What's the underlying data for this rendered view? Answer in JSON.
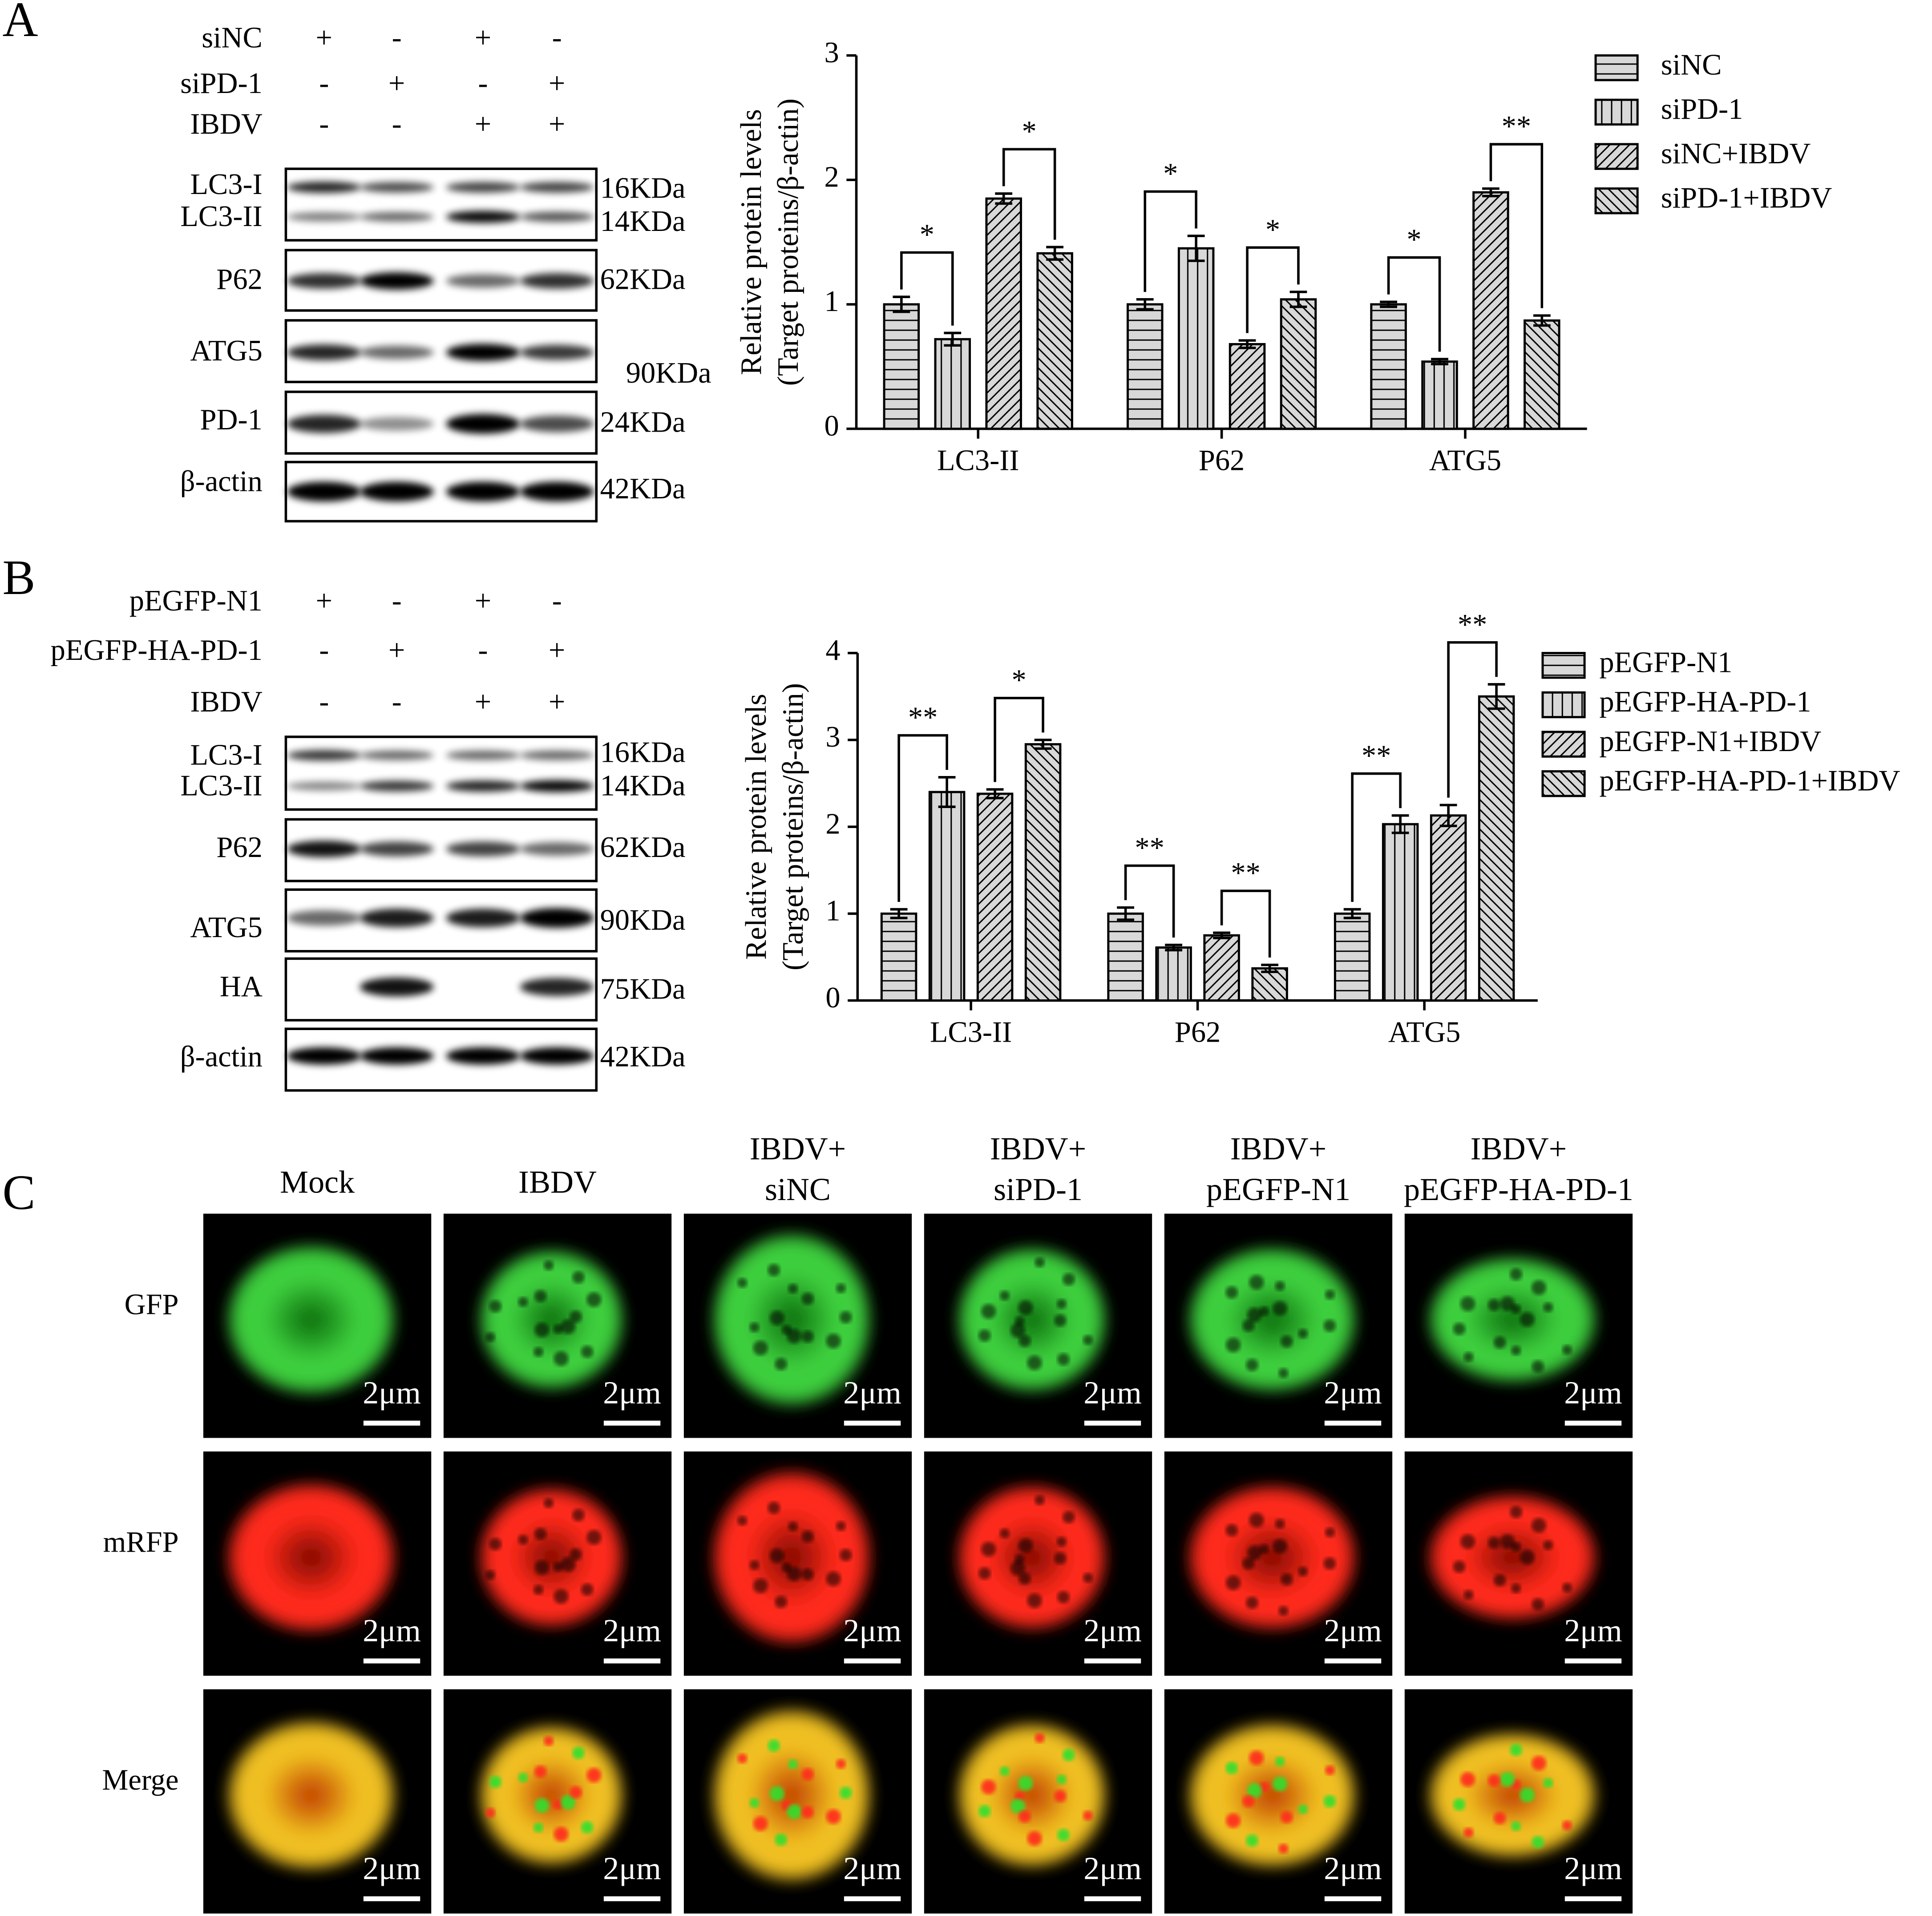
{
  "panel_a": {
    "label": "A",
    "treatments": [
      {
        "name": "siNC",
        "signs": [
          "+",
          "-",
          "+",
          "-"
        ]
      },
      {
        "name": "siPD-1",
        "signs": [
          "-",
          "+",
          "-",
          "+"
        ]
      },
      {
        "name": "IBDV",
        "signs": [
          "-",
          "-",
          "+",
          "+"
        ]
      }
    ],
    "blots": [
      {
        "labels": [
          "LC3-I",
          "LC3-II"
        ],
        "sizes": [
          "16KDa",
          "14KDa"
        ]
      },
      {
        "labels": [
          "P62"
        ],
        "sizes": [
          "62KDa"
        ]
      },
      {
        "labels": [
          "ATG5"
        ],
        "sizes": [
          "90KDa"
        ]
      },
      {
        "labels": [
          "PD-1"
        ],
        "sizes": [
          "24KDa"
        ]
      },
      {
        "labels": [
          "β-actin"
        ],
        "sizes": [
          "42KDa"
        ]
      }
    ]
  },
  "panel_b": {
    "label": "B",
    "treatments": [
      {
        "name": "pEGFP-N1",
        "signs": [
          "+",
          "-",
          "+",
          "-"
        ]
      },
      {
        "name": "pEGFP-HA-PD-1",
        "signs": [
          "-",
          "+",
          "-",
          "+"
        ]
      },
      {
        "name": "IBDV",
        "signs": [
          "-",
          "-",
          "+",
          "+"
        ]
      }
    ],
    "blots": [
      {
        "labels": [
          "LC3-I",
          "LC3-II"
        ],
        "sizes": [
          "16KDa",
          "14KDa"
        ]
      },
      {
        "labels": [
          "P62"
        ],
        "sizes": [
          "62KDa"
        ]
      },
      {
        "labels": [
          "ATG5"
        ],
        "sizes": [
          "90KDa"
        ]
      },
      {
        "labels": [
          "HA"
        ],
        "sizes": [
          "75KDa"
        ]
      },
      {
        "labels": [
          "β-actin"
        ],
        "sizes": [
          "42KDa"
        ]
      }
    ]
  },
  "chart_data": [
    {
      "type": "bar",
      "ylabel": [
        "Relative protein levels",
        "(Target proteins/β-actin)"
      ],
      "categories": [
        "LC3-II",
        "P62",
        "ATG5"
      ],
      "ylim": [
        0,
        3
      ],
      "yticks": [
        0,
        1,
        2,
        3
      ],
      "grid": false,
      "legend": "right",
      "series": [
        {
          "name": "siNC",
          "color": "#d8d8d8",
          "pattern": "horizontal",
          "values": [
            1.0,
            1.0,
            1.0
          ],
          "errors": [
            0.06,
            0.04,
            0.02
          ]
        },
        {
          "name": "siPD-1",
          "color": "#d8d8d8",
          "pattern": "vertical",
          "values": [
            0.72,
            1.45,
            0.54
          ],
          "errors": [
            0.05,
            0.1,
            0.02
          ]
        },
        {
          "name": "siNC+IBDV",
          "color": "#d8d8d8",
          "pattern": "diagonal",
          "values": [
            1.85,
            0.68,
            1.9
          ],
          "errors": [
            0.04,
            0.03,
            0.03
          ]
        },
        {
          "name": "siPD-1+IBDV",
          "color": "#d8d8d8",
          "pattern": "backdiagonal",
          "values": [
            1.41,
            1.04,
            0.87
          ],
          "errors": [
            0.05,
            0.06,
            0.04
          ]
        }
      ],
      "annotations": [
        {
          "category": 0,
          "series": [
            0,
            1
          ],
          "text": "*"
        },
        {
          "category": 0,
          "series": [
            2,
            3
          ],
          "text": "*"
        },
        {
          "category": 1,
          "series": [
            0,
            1
          ],
          "text": "*"
        },
        {
          "category": 1,
          "series": [
            2,
            3
          ],
          "text": "*"
        },
        {
          "category": 2,
          "series": [
            0,
            1
          ],
          "text": "*"
        },
        {
          "category": 2,
          "series": [
            2,
            3
          ],
          "text": "**"
        }
      ]
    },
    {
      "type": "bar",
      "ylabel": [
        "Relative protein levels",
        "(Target proteins/β-actin)"
      ],
      "categories": [
        "LC3-II",
        "P62",
        "ATG5"
      ],
      "ylim": [
        0,
        4
      ],
      "yticks": [
        0,
        1,
        2,
        3,
        4
      ],
      "grid": false,
      "legend": "right",
      "series": [
        {
          "name": "pEGFP-N1",
          "color": "#d8d8d8",
          "pattern": "horizontal",
          "values": [
            1.0,
            1.0,
            1.0
          ],
          "errors": [
            0.05,
            0.07,
            0.05
          ]
        },
        {
          "name": "pEGFP-HA-PD-1",
          "color": "#d8d8d8",
          "pattern": "vertical",
          "values": [
            2.4,
            0.61,
            2.03
          ],
          "errors": [
            0.17,
            0.03,
            0.1
          ]
        },
        {
          "name": "pEGFP-N1+IBDV",
          "color": "#d8d8d8",
          "pattern": "diagonal",
          "values": [
            2.38,
            0.75,
            2.13
          ],
          "errors": [
            0.05,
            0.03,
            0.12
          ]
        },
        {
          "name": "pEGFP-HA-PD-1+IBDV",
          "color": "#d8d8d8",
          "pattern": "backdiagonal",
          "values": [
            2.95,
            0.37,
            3.5
          ],
          "errors": [
            0.05,
            0.04,
            0.14
          ]
        }
      ],
      "annotations": [
        {
          "category": 0,
          "series": [
            0,
            1
          ],
          "text": "**"
        },
        {
          "category": 0,
          "series": [
            2,
            3
          ],
          "text": "*"
        },
        {
          "category": 1,
          "series": [
            0,
            1
          ],
          "text": "**"
        },
        {
          "category": 1,
          "series": [
            2,
            3
          ],
          "text": "**"
        },
        {
          "category": 2,
          "series": [
            0,
            1
          ],
          "text": "**"
        },
        {
          "category": 2,
          "series": [
            2,
            3
          ],
          "text": "**"
        }
      ]
    }
  ],
  "panel_c": {
    "label": "C",
    "columns": [
      [
        "Mock"
      ],
      [
        "IBDV"
      ],
      [
        "IBDV+",
        "siNC"
      ],
      [
        "IBDV+",
        "siPD-1"
      ],
      [
        "IBDV+",
        "pEGFP-N1"
      ],
      [
        "IBDV+",
        "pEGFP-HA-PD-1"
      ]
    ],
    "rows": [
      "GFP",
      "mRFP",
      "Merge"
    ],
    "scale_bar": "2μm"
  }
}
